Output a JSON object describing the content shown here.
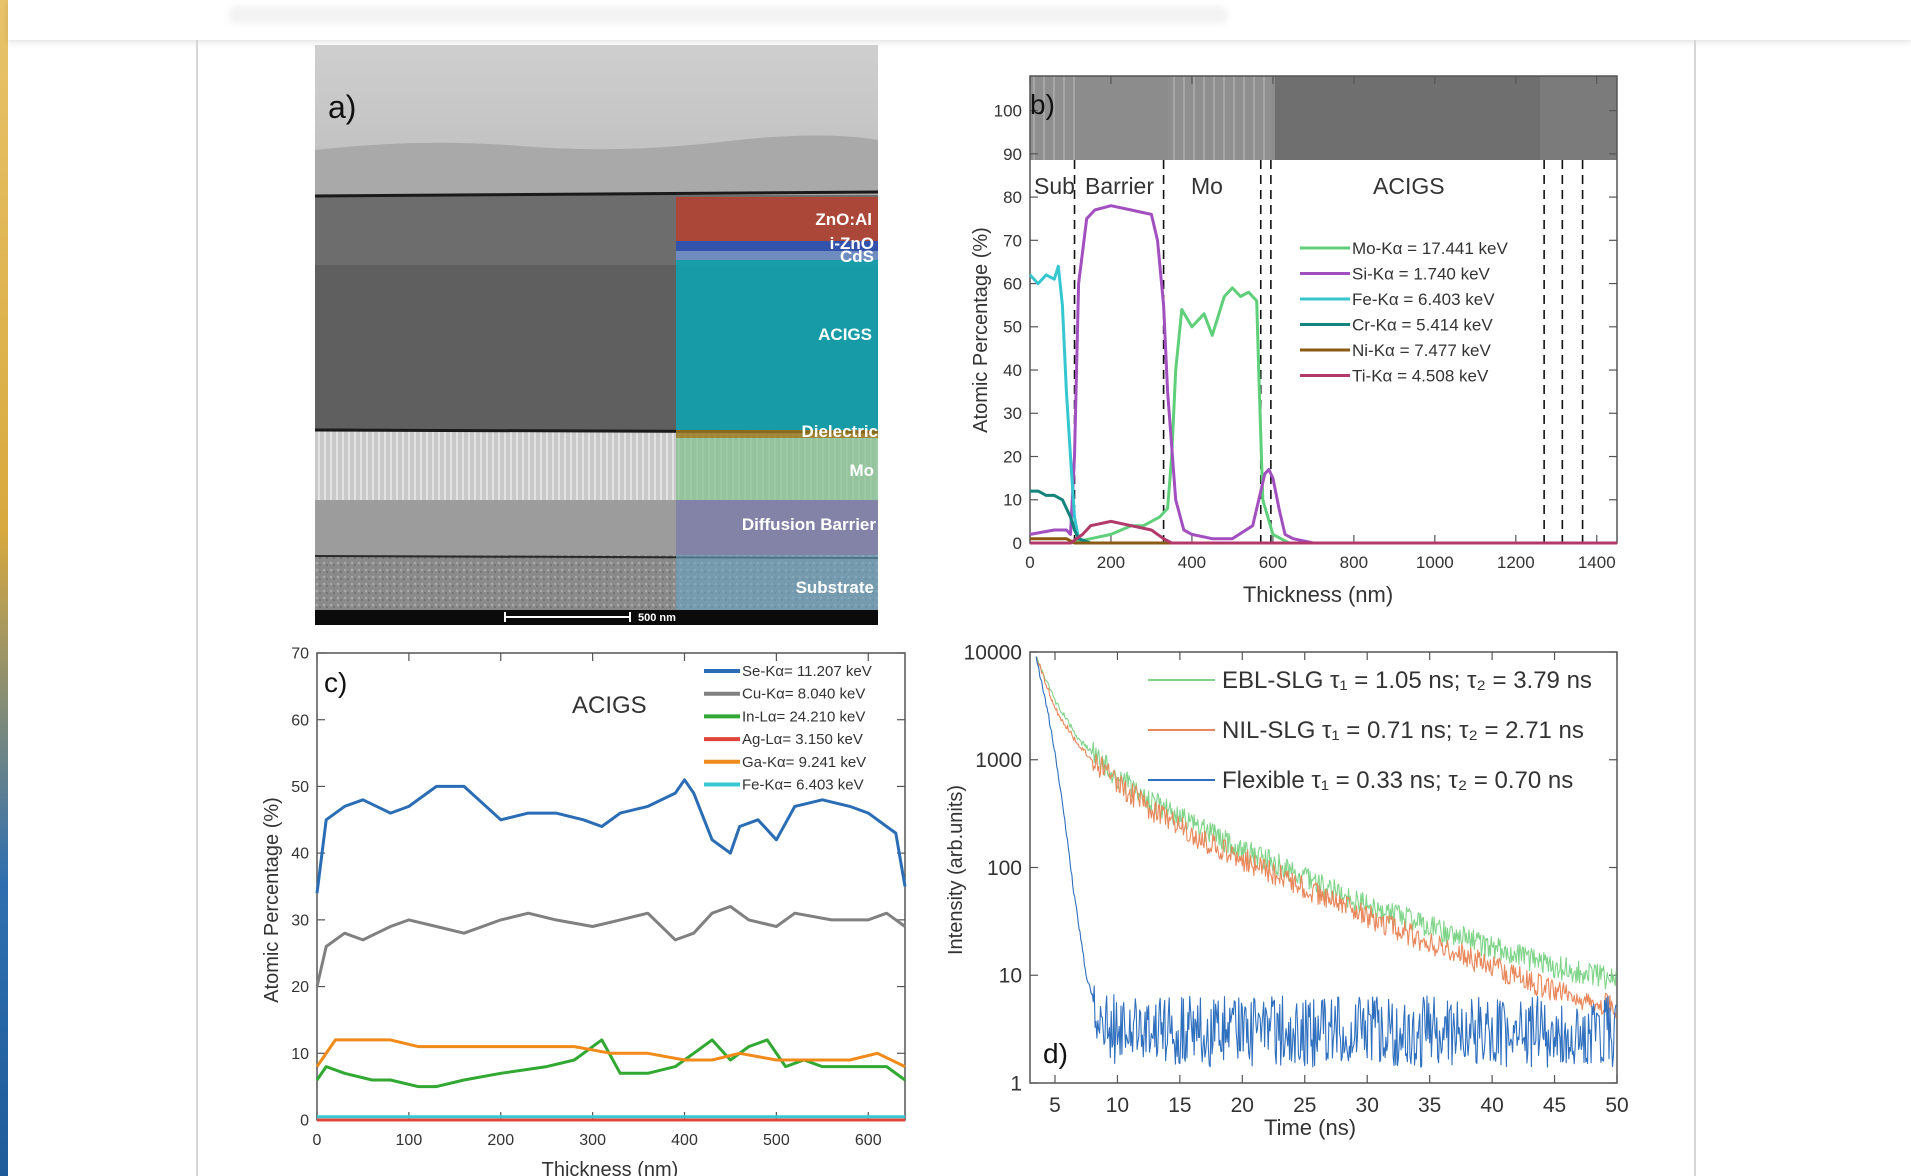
{
  "panel_a": {
    "label": "a)",
    "layers": [
      "ZnO:Al",
      "i-ZnO",
      "CdS",
      "ACIGS",
      "Dielectric",
      "Mo",
      "Diffusion Barrier",
      "Substrate"
    ],
    "scale_bar": "500 nm"
  },
  "chart_data": [
    {
      "id": "b",
      "type": "line",
      "label": "b)",
      "xlabel": "Thickness (nm)",
      "ylabel": "Atomic Percentage (%)",
      "xlim": [
        0,
        1450
      ],
      "ylim": [
        0,
        108
      ],
      "xticks": [
        0,
        200,
        400,
        600,
        800,
        1000,
        1200,
        1400
      ],
      "yticks": [
        0,
        10,
        20,
        30,
        40,
        50,
        60,
        70,
        80,
        90,
        100
      ],
      "regions": [
        "Sub",
        "Barrier",
        "Mo",
        "ACIGS"
      ],
      "dividers": [
        110,
        330,
        570,
        595,
        1270,
        1315,
        1365
      ],
      "series": [
        {
          "name": "Mo-Kα = 17.441 keV",
          "color": "#5fcf7a",
          "x": [
            0,
            100,
            150,
            200,
            250,
            280,
            300,
            320,
            340,
            350,
            360,
            375,
            400,
            430,
            450,
            480,
            500,
            520,
            540,
            560,
            565,
            575,
            600,
            640,
            700,
            1000,
            1450
          ],
          "y": [
            0,
            0,
            1,
            2,
            4,
            4,
            5,
            6,
            8,
            20,
            40,
            54,
            50,
            53,
            48,
            57,
            59,
            57,
            58,
            56,
            40,
            10,
            2,
            0,
            0,
            0,
            0
          ]
        },
        {
          "name": "Si-Kα = 1.740 keV",
          "color": "#a24fc0",
          "x": [
            0,
            60,
            90,
            100,
            110,
            120,
            140,
            160,
            200,
            250,
            300,
            315,
            330,
            340,
            360,
            380,
            400,
            450,
            500,
            550,
            570,
            580,
            590,
            600,
            615,
            630,
            650,
            700,
            1000,
            1450
          ],
          "y": [
            2,
            3,
            3,
            2,
            20,
            60,
            75,
            77,
            78,
            77,
            76,
            70,
            55,
            35,
            10,
            3,
            2,
            1,
            1,
            4,
            12,
            16,
            17,
            15,
            8,
            2,
            1,
            0,
            0,
            0
          ]
        },
        {
          "name": "Fe-Kα = 6.403 keV",
          "color": "#35c6cf",
          "x": [
            0,
            20,
            40,
            60,
            70,
            80,
            90,
            100,
            110,
            120,
            140,
            200,
            1450
          ],
          "y": [
            62,
            60,
            62,
            61,
            64,
            55,
            35,
            20,
            6,
            1,
            0,
            0,
            0
          ]
        },
        {
          "name": "Cr-Kα = 5.414 keV",
          "color": "#13837e",
          "x": [
            0,
            20,
            40,
            60,
            80,
            100,
            110,
            120,
            150,
            1450
          ],
          "y": [
            12,
            12,
            11,
            11,
            10,
            6,
            3,
            1,
            0,
            0
          ]
        },
        {
          "name": "Ni-Kα = 7.477 keV",
          "color": "#8a5a14",
          "x": [
            0,
            50,
            90,
            110,
            130,
            1450
          ],
          "y": [
            1,
            1,
            1,
            0,
            0,
            0
          ]
        },
        {
          "name": "Ti-Kα = 4.508 keV",
          "color": "#b13a6b",
          "x": [
            0,
            100,
            130,
            150,
            200,
            250,
            300,
            330,
            350,
            1450
          ],
          "y": [
            0,
            0,
            2,
            4,
            5,
            4,
            3,
            1,
            0,
            0
          ]
        }
      ]
    },
    {
      "id": "c",
      "type": "line",
      "label": "c)",
      "annotation": "ACIGS",
      "xlabel": "Thickness (nm)",
      "ylabel": "Atomic Percentage (%)",
      "xlim": [
        0,
        640
      ],
      "ylim": [
        0,
        70
      ],
      "xticks": [
        0,
        100,
        200,
        300,
        400,
        500,
        600
      ],
      "yticks": [
        0,
        10,
        20,
        30,
        40,
        50,
        60,
        70
      ],
      "series": [
        {
          "name": "Se-Kα= 11.207 keV",
          "color": "#2a6db5",
          "x": [
            0,
            10,
            30,
            50,
            80,
            100,
            130,
            160,
            200,
            230,
            260,
            290,
            310,
            330,
            360,
            390,
            400,
            410,
            430,
            450,
            460,
            480,
            500,
            520,
            550,
            580,
            600,
            620,
            630,
            640
          ],
          "y": [
            34,
            45,
            47,
            48,
            46,
            47,
            50,
            50,
            45,
            46,
            46,
            45,
            44,
            46,
            47,
            49,
            51,
            49,
            42,
            40,
            44,
            45,
            42,
            47,
            48,
            47,
            46,
            44,
            43,
            35
          ]
        },
        {
          "name": "Cu-Kα= 8.040 keV",
          "color": "#808080",
          "x": [
            0,
            10,
            30,
            50,
            80,
            100,
            130,
            160,
            200,
            230,
            260,
            300,
            330,
            360,
            390,
            410,
            430,
            450,
            470,
            500,
            520,
            560,
            600,
            620,
            640
          ],
          "y": [
            20,
            26,
            28,
            27,
            29,
            30,
            29,
            28,
            30,
            31,
            30,
            29,
            30,
            31,
            27,
            28,
            31,
            32,
            30,
            29,
            31,
            30,
            30,
            31,
            29
          ]
        },
        {
          "name": "In-Lα= 24.210 keV",
          "color": "#30a832",
          "x": [
            0,
            10,
            30,
            60,
            80,
            110,
            130,
            160,
            200,
            250,
            280,
            310,
            330,
            360,
            390,
            410,
            430,
            450,
            470,
            490,
            510,
            530,
            550,
            580,
            620,
            640
          ],
          "y": [
            6,
            8,
            7,
            6,
            6,
            5,
            5,
            6,
            7,
            8,
            9,
            12,
            7,
            7,
            8,
            10,
            12,
            9,
            11,
            12,
            8,
            9,
            8,
            8,
            8,
            6
          ]
        },
        {
          "name": "Ag-Lα= 3.150 keV",
          "color": "#e0453a",
          "x": [
            0,
            640
          ],
          "y": [
            0,
            0
          ]
        },
        {
          "name": "Ga-Kα= 9.241 keV",
          "color": "#f08a1a",
          "x": [
            0,
            20,
            50,
            80,
            110,
            140,
            170,
            200,
            240,
            280,
            320,
            360,
            400,
            430,
            460,
            500,
            540,
            580,
            610,
            640
          ],
          "y": [
            8,
            12,
            12,
            12,
            11,
            11,
            11,
            11,
            11,
            11,
            10,
            10,
            9,
            9,
            10,
            9,
            9,
            9,
            10,
            8
          ]
        },
        {
          "name": "Fe-Kα= 6.403 keV",
          "color": "#39c7d4",
          "x": [
            0,
            640
          ],
          "y": [
            0.5,
            0.5
          ]
        }
      ]
    },
    {
      "id": "d",
      "type": "line",
      "label": "d)",
      "xlabel": "Time (ns)",
      "ylabel": "Intensity (arb.units)",
      "yscale": "log",
      "xlim": [
        3,
        50
      ],
      "ylim": [
        1,
        10000
      ],
      "xticks": [
        5,
        10,
        15,
        20,
        25,
        30,
        35,
        40,
        45,
        50
      ],
      "yticks": [
        1,
        10,
        100,
        1000,
        10000
      ],
      "series": [
        {
          "name": "EBL-SLG",
          "legend": "EBL-SLG τ₁ = 1.05 ns; τ₂ = 3.79 ns",
          "color": "#7fd48a",
          "x": [
            3.5,
            5,
            7,
            10,
            13,
            16,
            20,
            25,
            30,
            35,
            40,
            45,
            50
          ],
          "y": [
            9000,
            3500,
            1500,
            700,
            400,
            250,
            150,
            80,
            45,
            28,
            18,
            12,
            9
          ]
        },
        {
          "name": "NIL-SLG",
          "legend": "NIL-SLG   τ₁ = 0.71 ns; τ₂ = 2.71 ns",
          "color": "#e8875a",
          "x": [
            3.5,
            5,
            7,
            10,
            13,
            16,
            20,
            25,
            30,
            35,
            40,
            45,
            50
          ],
          "y": [
            9000,
            3000,
            1300,
            600,
            330,
            200,
            120,
            65,
            35,
            20,
            12,
            7,
            5
          ]
        },
        {
          "name": "Flexible",
          "legend": "Flexible τ₁ = 0.33 ns; τ₂ = 0.70 ns",
          "color": "#2e6fbe",
          "x": [
            3.5,
            4.5,
            5.5,
            6.5,
            7.5,
            8.5,
            10,
            50
          ],
          "y": [
            9000,
            2500,
            500,
            60,
            10,
            4,
            3,
            3
          ]
        }
      ]
    }
  ]
}
